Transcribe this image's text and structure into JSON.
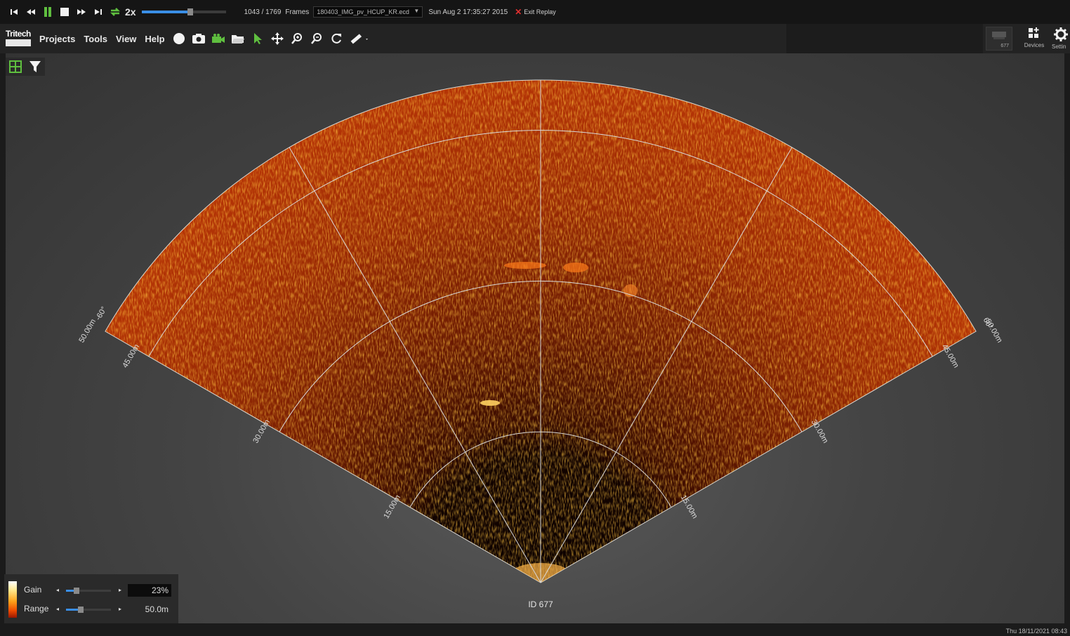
{
  "playback": {
    "speed": "2x",
    "progress_fraction": 0.58,
    "frame_counter": "1043 / 1769",
    "frames_label": "Frames",
    "file": "180403_IMG_pv_HCUP_KR.ecd",
    "recorded_time": "Sun Aug 2 17:35:27 2015",
    "exit_label": "Exit Replay"
  },
  "menu": {
    "logo_text": "Tritech",
    "items": [
      "Projects",
      "Tools",
      "View",
      "Help"
    ]
  },
  "right_toolbar": {
    "device_id": "677",
    "devices_label": "Devices",
    "settings_label": "Settin"
  },
  "sonar": {
    "range_labels": [
      "15.00m",
      "30.00m",
      "45.00m",
      "50.00m"
    ],
    "angle_left": "-60°",
    "angle_right": "60°",
    "device_label": "ID 677"
  },
  "controls": {
    "gain_label": "Gain",
    "gain_value": "23%",
    "gain_fraction": 0.23,
    "range_label": "Range",
    "range_value": "50.0m",
    "range_fraction": 0.33
  },
  "status": {
    "datetime": "Thu 18/11/2021 08:43"
  },
  "colors": {
    "accent": "#3a8ee6",
    "icon_green": "#5fbf3f",
    "sonar_base": "#c23a08",
    "exit_red": "#e23030"
  }
}
